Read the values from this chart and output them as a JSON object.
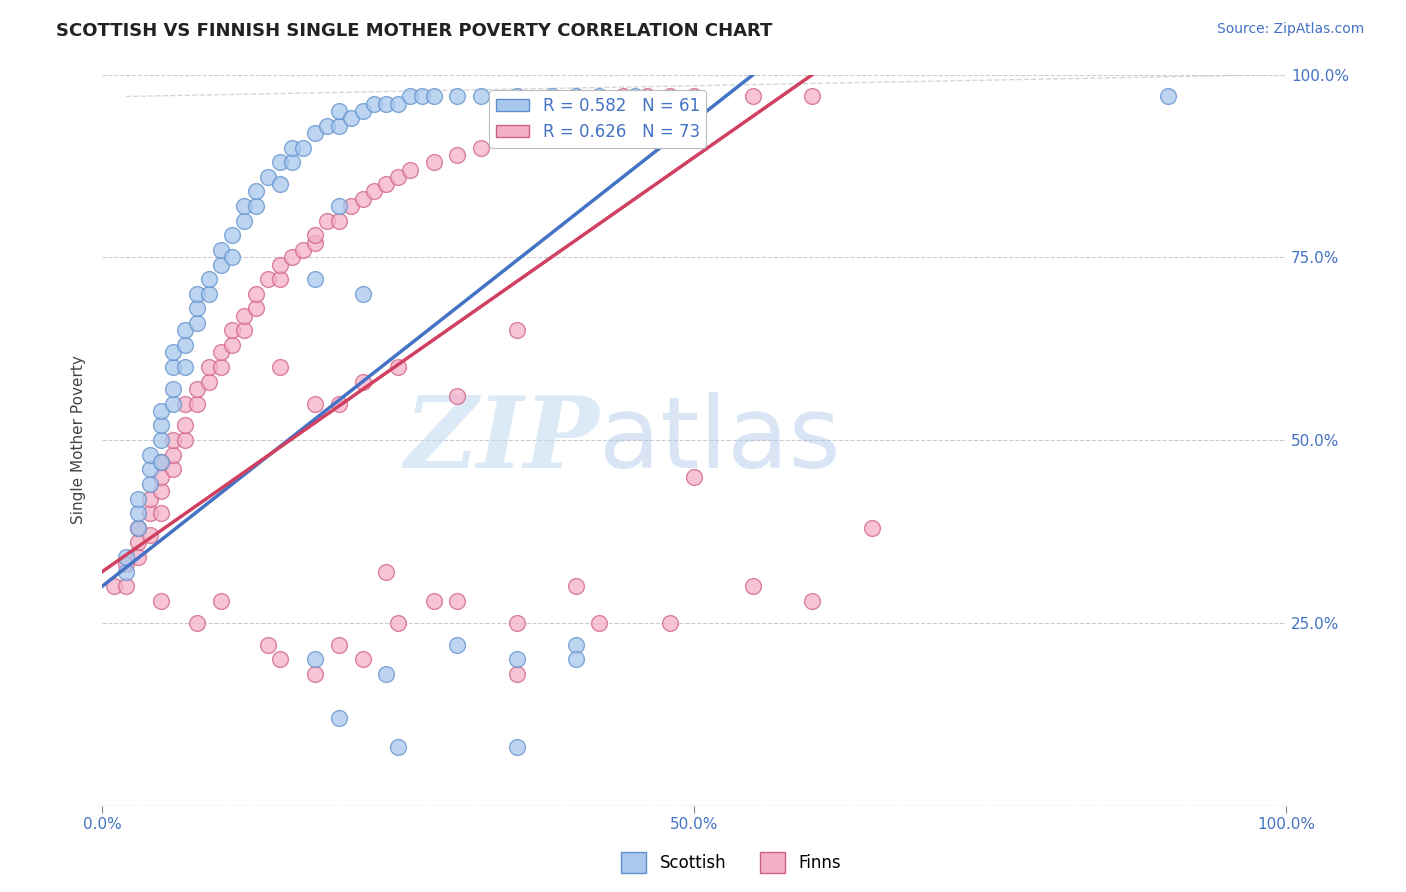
{
  "title": "SCOTTISH VS FINNISH SINGLE MOTHER POVERTY CORRELATION CHART",
  "source": "Source: ZipAtlas.com",
  "ylabel": "Single Mother Poverty",
  "xlim": [
    0.0,
    1.0
  ],
  "ylim": [
    0.0,
    1.0
  ],
  "title_color": "#222222",
  "title_fontsize": 14,
  "source_color": "#4472c4",
  "legend_R_scottish": "R = 0.582",
  "legend_N_scottish": "N = 61",
  "legend_R_finns": "R = 0.626",
  "legend_N_finns": "N = 73",
  "scottish_color": "#a8c8ee",
  "finns_color": "#f4b0c8",
  "scottish_edge_color": "#6090cc",
  "finns_edge_color": "#d06080",
  "scottish_line_color": "#4472c4",
  "finns_line_color": "#d04060",
  "background_color": "#ffffff",
  "grid_color": "#cccccc",
  "watermark_zip": "ZIP",
  "watermark_atlas": "atlas",
  "scottish_x": [
    0.02,
    0.02,
    0.03,
    0.03,
    0.03,
    0.04,
    0.04,
    0.04,
    0.05,
    0.05,
    0.05,
    0.05,
    0.06,
    0.06,
    0.06,
    0.06,
    0.07,
    0.07,
    0.07,
    0.08,
    0.08,
    0.08,
    0.09,
    0.09,
    0.1,
    0.1,
    0.11,
    0.11,
    0.12,
    0.12,
    0.13,
    0.13,
    0.14,
    0.15,
    0.15,
    0.16,
    0.16,
    0.17,
    0.18,
    0.19,
    0.2,
    0.2,
    0.21,
    0.22,
    0.23,
    0.24,
    0.25,
    0.26,
    0.27,
    0.28,
    0.3,
    0.32,
    0.35,
    0.38,
    0.4,
    0.42,
    0.45,
    0.18,
    0.2,
    0.22,
    0.9
  ],
  "scottish_y": [
    0.32,
    0.34,
    0.38,
    0.4,
    0.42,
    0.44,
    0.46,
    0.48,
    0.47,
    0.5,
    0.52,
    0.54,
    0.55,
    0.57,
    0.6,
    0.62,
    0.6,
    0.63,
    0.65,
    0.66,
    0.68,
    0.7,
    0.7,
    0.72,
    0.74,
    0.76,
    0.75,
    0.78,
    0.8,
    0.82,
    0.82,
    0.84,
    0.86,
    0.85,
    0.88,
    0.88,
    0.9,
    0.9,
    0.92,
    0.93,
    0.93,
    0.95,
    0.94,
    0.95,
    0.96,
    0.96,
    0.96,
    0.97,
    0.97,
    0.97,
    0.97,
    0.97,
    0.97,
    0.97,
    0.97,
    0.97,
    0.97,
    0.72,
    0.82,
    0.7,
    0.97
  ],
  "scottish_outlier_x": [
    0.18,
    0.24,
    0.3,
    0.35,
    0.4,
    0.2,
    0.25,
    0.35,
    0.4
  ],
  "scottish_outlier_y": [
    0.2,
    0.18,
    0.22,
    0.2,
    0.22,
    0.12,
    0.08,
    0.08,
    0.2
  ],
  "finns_x": [
    0.01,
    0.02,
    0.02,
    0.03,
    0.03,
    0.03,
    0.04,
    0.04,
    0.04,
    0.05,
    0.05,
    0.05,
    0.05,
    0.06,
    0.06,
    0.06,
    0.07,
    0.07,
    0.07,
    0.08,
    0.08,
    0.09,
    0.09,
    0.1,
    0.1,
    0.11,
    0.11,
    0.12,
    0.12,
    0.13,
    0.13,
    0.14,
    0.15,
    0.15,
    0.16,
    0.17,
    0.18,
    0.18,
    0.19,
    0.2,
    0.21,
    0.22,
    0.23,
    0.24,
    0.25,
    0.26,
    0.28,
    0.3,
    0.32,
    0.35,
    0.38,
    0.4,
    0.42,
    0.44,
    0.46,
    0.48,
    0.5,
    0.55,
    0.6,
    0.15,
    0.18,
    0.2,
    0.22,
    0.25,
    0.3,
    0.35,
    0.15,
    0.2,
    0.25,
    0.3,
    0.35,
    0.4,
    0.5
  ],
  "finns_y": [
    0.3,
    0.3,
    0.33,
    0.34,
    0.36,
    0.38,
    0.37,
    0.4,
    0.42,
    0.4,
    0.43,
    0.45,
    0.47,
    0.46,
    0.48,
    0.5,
    0.5,
    0.52,
    0.55,
    0.55,
    0.57,
    0.58,
    0.6,
    0.6,
    0.62,
    0.63,
    0.65,
    0.65,
    0.67,
    0.68,
    0.7,
    0.72,
    0.72,
    0.74,
    0.75,
    0.76,
    0.77,
    0.78,
    0.8,
    0.8,
    0.82,
    0.83,
    0.84,
    0.85,
    0.86,
    0.87,
    0.88,
    0.89,
    0.9,
    0.92,
    0.94,
    0.95,
    0.96,
    0.97,
    0.97,
    0.97,
    0.97,
    0.97,
    0.97,
    0.6,
    0.55,
    0.55,
    0.58,
    0.6,
    0.56,
    0.65,
    0.2,
    0.22,
    0.25,
    0.28,
    0.25,
    0.3,
    0.45
  ],
  "finns_outlier_x": [
    0.05,
    0.08,
    0.1,
    0.14,
    0.18,
    0.22,
    0.24,
    0.28,
    0.35,
    0.42,
    0.48,
    0.55,
    0.6,
    0.65
  ],
  "finns_outlier_y": [
    0.28,
    0.25,
    0.28,
    0.22,
    0.18,
    0.2,
    0.32,
    0.28,
    0.18,
    0.25,
    0.25,
    0.3,
    0.28,
    0.38
  ],
  "scottish_line_x0": 0.0,
  "scottish_line_y0": 0.3,
  "scottish_line_x1": 0.55,
  "scottish_line_y1": 1.0,
  "finns_line_x0": 0.0,
  "finns_line_y0": 0.32,
  "finns_line_x1": 0.6,
  "finns_line_y1": 1.0
}
